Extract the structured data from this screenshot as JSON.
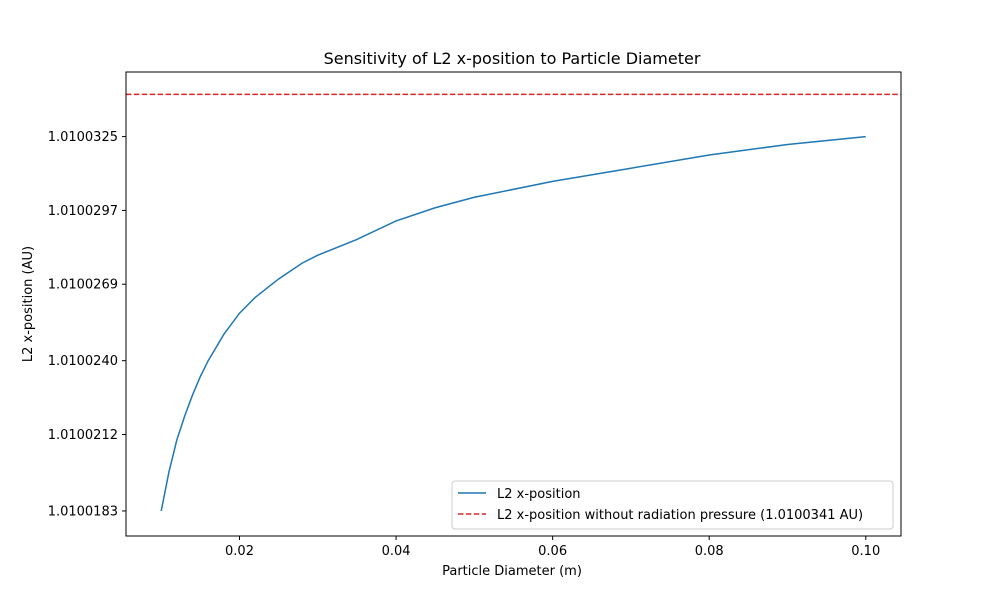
{
  "chart_data": {
    "type": "line",
    "title": "Sensitivity of L2 x-position to Particle Diameter",
    "xlabel": "Particle Diameter (m)",
    "ylabel": "L2 x-position (AU)",
    "xlim": [
      0.0055,
      0.1045
    ],
    "ylim": [
      1.01001735,
      1.01003495
    ],
    "xticks": [
      0.02,
      0.04,
      0.06,
      0.08,
      0.1
    ],
    "xtick_labels": [
      "0.02",
      "0.04",
      "0.06",
      "0.08",
      "0.10"
    ],
    "yticks": [
      1.0100183,
      1.0100212,
      1.010024,
      1.0100269,
      1.0100297,
      1.0100325
    ],
    "ytick_labels": [
      "1.0100183",
      "1.0100212",
      "1.0100240",
      "1.0100269",
      "1.0100297",
      "1.0100325"
    ],
    "grid": false,
    "legend_position": "lower-right",
    "series": [
      {
        "name": "L2 x-position",
        "color": "#1f77b4",
        "style": "solid",
        "x": [
          0.01,
          0.011,
          0.012,
          0.013,
          0.014,
          0.015,
          0.016,
          0.018,
          0.02,
          0.022,
          0.025,
          0.028,
          0.03,
          0.035,
          0.04,
          0.045,
          0.05,
          0.06,
          0.07,
          0.08,
          0.09,
          0.1
        ],
        "y": [
          1.0100183,
          1.0100198,
          1.010021,
          1.0100219,
          1.0100227,
          1.0100234,
          1.010024,
          1.010025,
          1.0100258,
          1.0100264,
          1.0100271,
          1.0100277,
          1.010028,
          1.0100286,
          1.0100293,
          1.0100298,
          1.0100302,
          1.0100308,
          1.0100313,
          1.0100318,
          1.0100322,
          1.0100325
        ]
      },
      {
        "name": "L2 x-position without radiation pressure (1.0100341 AU)",
        "color": "#d62728",
        "style": "dashed",
        "hline": 1.0100341
      }
    ]
  }
}
